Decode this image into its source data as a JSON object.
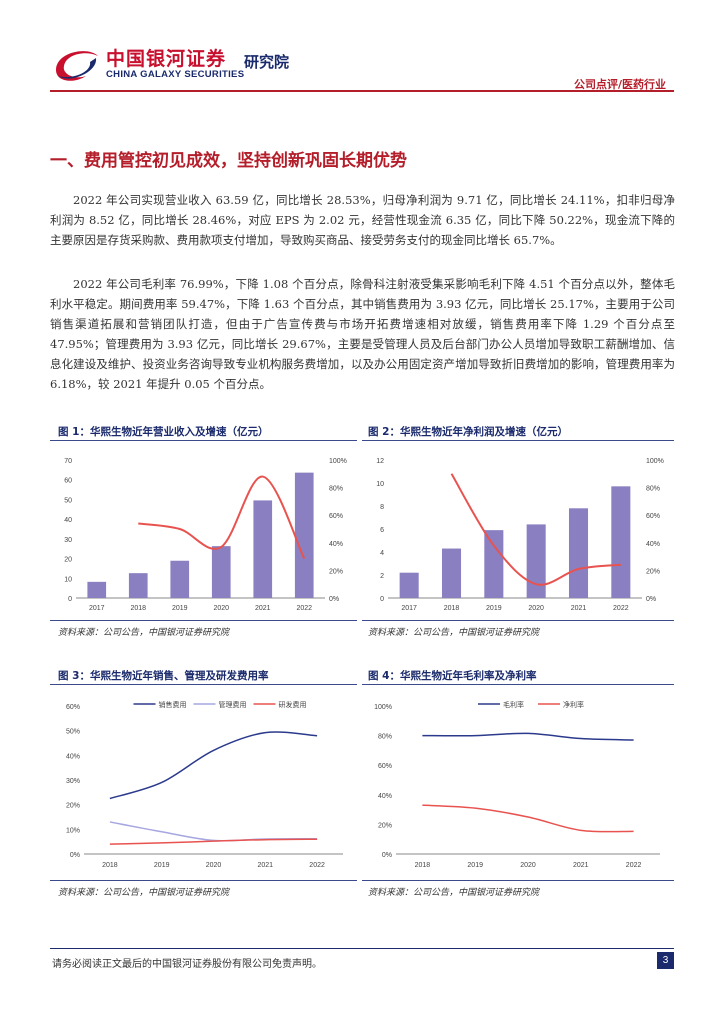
{
  "header": {
    "logo_cn": "中国银河证券",
    "logo_en": "CHINA GALAXY SECURITIES",
    "institute": "研究院",
    "section_tag": "公司点评/医药行业"
  },
  "section": {
    "title": "一、费用管控初见成效，坚持创新巩固长期优势"
  },
  "paragraphs": [
    "2022 年公司实现营业收入 63.59 亿，同比增长 28.53%，归母净利润为 9.71 亿，同比增长 24.11%，扣非归母净利润为 8.52 亿，同比增长 28.46%，对应 EPS 为 2.02 元，经营性现金流 6.35 亿，同比下降 50.22%，现金流下降的主要原因是存货采购款、费用款项支付增加，导致购买商品、接受劳务支付的现金同比增长 65.7%。",
    "2022 年公司毛利率 76.99%，下降 1.08 个百分点，除骨科注射液受集采影响毛利下降 4.51 个百分点以外，整体毛利水平稳定。期间费用率 59.47%，下降 1.63 个百分点，其中销售费用为 3.93 亿元，同比增长 25.17%，主要用于公司销售渠道拓展和营销团队打造，但由于广告宣传费与市场开拓费增速相对放缓，销售费用率下降 1.29 个百分点至 47.95%；管理费用为 3.93 亿元，同比增长 29.67%，主要是受管理人员及后台部门办公人员增加导致职工薪酬增加、信息化建设及维护、投资业务咨询导致专业机构服务费增加，以及办公用固定资产增加导致折旧费增加的影响，管理费用率为 6.18%，较 2021 年提升 0.05 个百分点。"
  ],
  "figures": [
    {
      "title": "图 1：华熙生物近年营业收入及增速（亿元）",
      "source": "资料来源：公司公告，中国银河证券研究院"
    },
    {
      "title": "图 2：华熙生物近年净利润及增速（亿元）",
      "source": "资料来源：公司公告，中国银河证券研究院"
    },
    {
      "title": "图 3：华熙生物近年销售、管理及研发费用率",
      "source": "资料来源：公司公告，中国银河证券研究院"
    },
    {
      "title": "图 4：华熙生物近年毛利率及净利率",
      "source": "资料来源：公司公告，中国银河证券研究院"
    }
  ],
  "footer": {
    "disclaimer": "请务必阅读正文最后的中国银河证券股份有限公司免责声明。",
    "page_number": "3"
  },
  "colors": {
    "brand_red": "#b41e2a",
    "brand_navy": "#1a2a6c",
    "bar": "#8a7fc0",
    "line_red": "#e8534f",
    "line_navy": "#2b3a8c",
    "line_lavender": "#a6a6e0"
  },
  "chart_data": [
    {
      "type": "bar",
      "categories": [
        "2017",
        "2018",
        "2019",
        "2020",
        "2021",
        "2022"
      ],
      "series": [
        {
          "type": "bar",
          "axis": "left",
          "values": [
            8.2,
            12.6,
            18.9,
            26.3,
            49.5,
            63.59
          ]
        },
        {
          "type": "line",
          "axis": "right",
          "values": [
            null,
            54,
            50,
            37,
            88,
            28.53
          ]
        }
      ],
      "ylim_left": [
        0,
        70
      ],
      "yticks_left": [
        "0",
        "10",
        "20",
        "30",
        "40",
        "50",
        "60",
        "70"
      ],
      "ylim_right": [
        0,
        100
      ],
      "yticks_right": [
        "0%",
        "20%",
        "40%",
        "60%",
        "80%",
        "100%"
      ],
      "grid": false
    },
    {
      "type": "bar",
      "categories": [
        "2017",
        "2018",
        "2019",
        "2020",
        "2021",
        "2022"
      ],
      "series": [
        {
          "type": "bar",
          "axis": "left",
          "values": [
            2.2,
            4.3,
            5.9,
            6.4,
            7.8,
            9.71
          ]
        },
        {
          "type": "line",
          "axis": "right",
          "values": [
            null,
            90,
            38,
            10,
            21,
            24.11
          ]
        }
      ],
      "ylim_left": [
        0,
        12
      ],
      "yticks_left": [
        "0",
        "2",
        "4",
        "6",
        "8",
        "10",
        "12"
      ],
      "ylim_right": [
        0,
        100
      ],
      "yticks_right": [
        "0%",
        "20%",
        "40%",
        "60%",
        "80%",
        "100%"
      ],
      "grid": false
    },
    {
      "type": "line",
      "categories": [
        "2018",
        "2019",
        "2020",
        "2021",
        "2022"
      ],
      "series": [
        {
          "name": "销售费用",
          "color": "#2b3a8c",
          "values": [
            22.5,
            29,
            42,
            49.2,
            47.95
          ]
        },
        {
          "name": "管理费用",
          "color": "#a6a6e0",
          "values": [
            13,
            9,
            5.5,
            6.1,
            6.18
          ]
        },
        {
          "name": "研发费用",
          "color": "#e8534f",
          "values": [
            4,
            4.5,
            5.2,
            5.8,
            6.0
          ]
        }
      ],
      "ylim": [
        0,
        60
      ],
      "yticks": [
        "0%",
        "10%",
        "20%",
        "30%",
        "40%",
        "50%",
        "60%"
      ],
      "legend": "top",
      "grid": false
    },
    {
      "type": "line",
      "categories": [
        "2018",
        "2019",
        "2020",
        "2021",
        "2022"
      ],
      "series": [
        {
          "name": "毛利率",
          "color": "#2b3a8c",
          "values": [
            80,
            80,
            81.5,
            78,
            76.99
          ]
        },
        {
          "name": "净利率",
          "color": "#e8534f",
          "values": [
            33,
            31,
            25,
            16,
            15.3
          ]
        }
      ],
      "ylim": [
        0,
        100
      ],
      "yticks": [
        "0%",
        "20%",
        "40%",
        "60%",
        "80%",
        "100%"
      ],
      "legend": "top",
      "grid": false
    }
  ]
}
